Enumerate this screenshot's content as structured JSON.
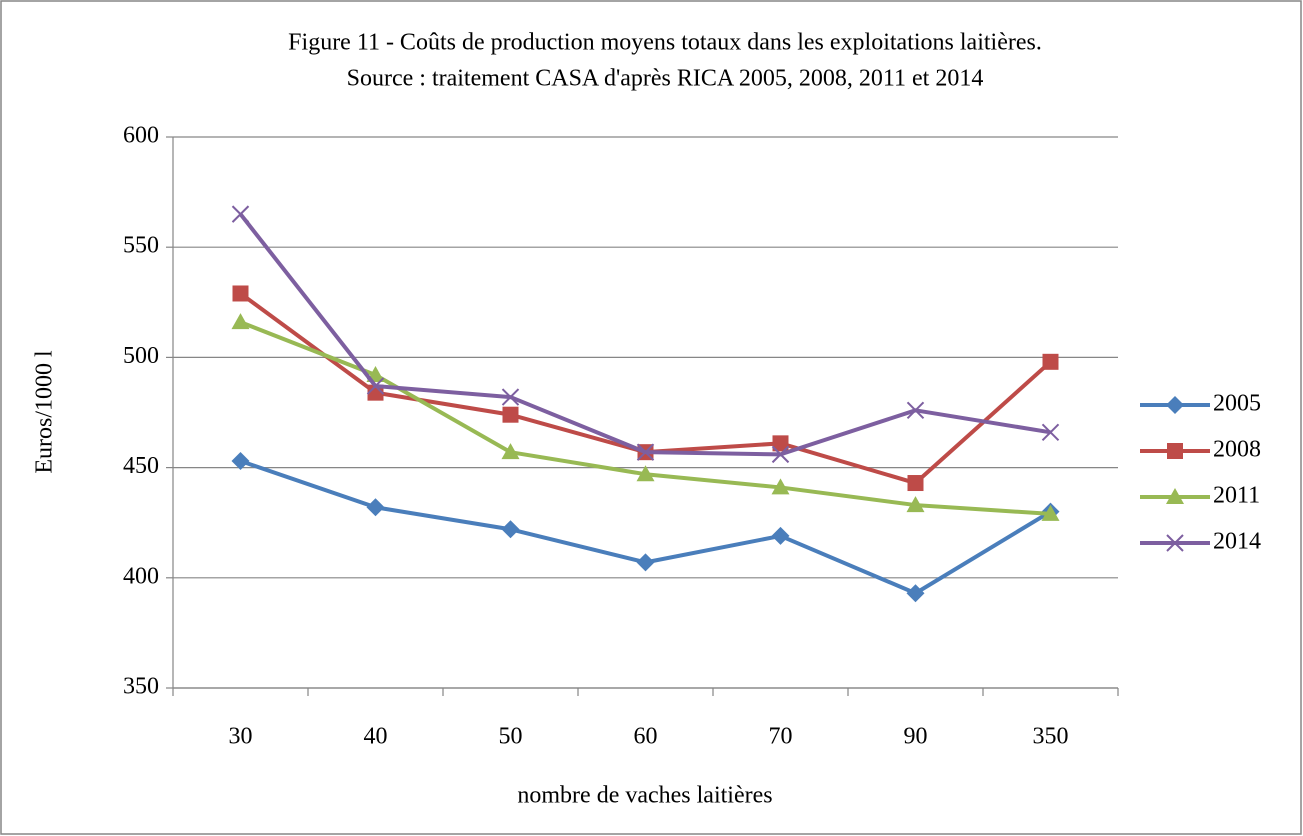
{
  "chart_data": {
    "type": "line",
    "title": "Figure 11 - Coûts de production moyens totaux dans les exploitations laitières.",
    "subtitle": "Source : traitement CASA d'après RICA 2005, 2008, 2011 et 2014",
    "x_label": "nombre de vaches laitières",
    "y_label": "Euros/1000 l",
    "categories": [
      "30",
      "40",
      "50",
      "60",
      "70",
      "90",
      "350"
    ],
    "series": [
      {
        "name": "2005",
        "color": "#4a7ebb",
        "marker": "diamond",
        "values": [
          453,
          432,
          422,
          407,
          419,
          393,
          430
        ]
      },
      {
        "name": "2008",
        "color": "#be4b48",
        "marker": "square",
        "values": [
          529,
          484,
          474,
          457,
          461,
          443,
          498
        ]
      },
      {
        "name": "2011",
        "color": "#98b954",
        "marker": "triangle",
        "values": [
          516,
          492,
          457,
          447,
          441,
          433,
          429
        ]
      },
      {
        "name": "2014",
        "color": "#7d5fa0",
        "marker": "x",
        "values": [
          565,
          487,
          482,
          457,
          456,
          476,
          466
        ]
      }
    ],
    "ylim": [
      350,
      600
    ],
    "yticks": [
      350,
      400,
      450,
      500,
      550,
      600
    ],
    "grid": true,
    "legend": "right"
  }
}
